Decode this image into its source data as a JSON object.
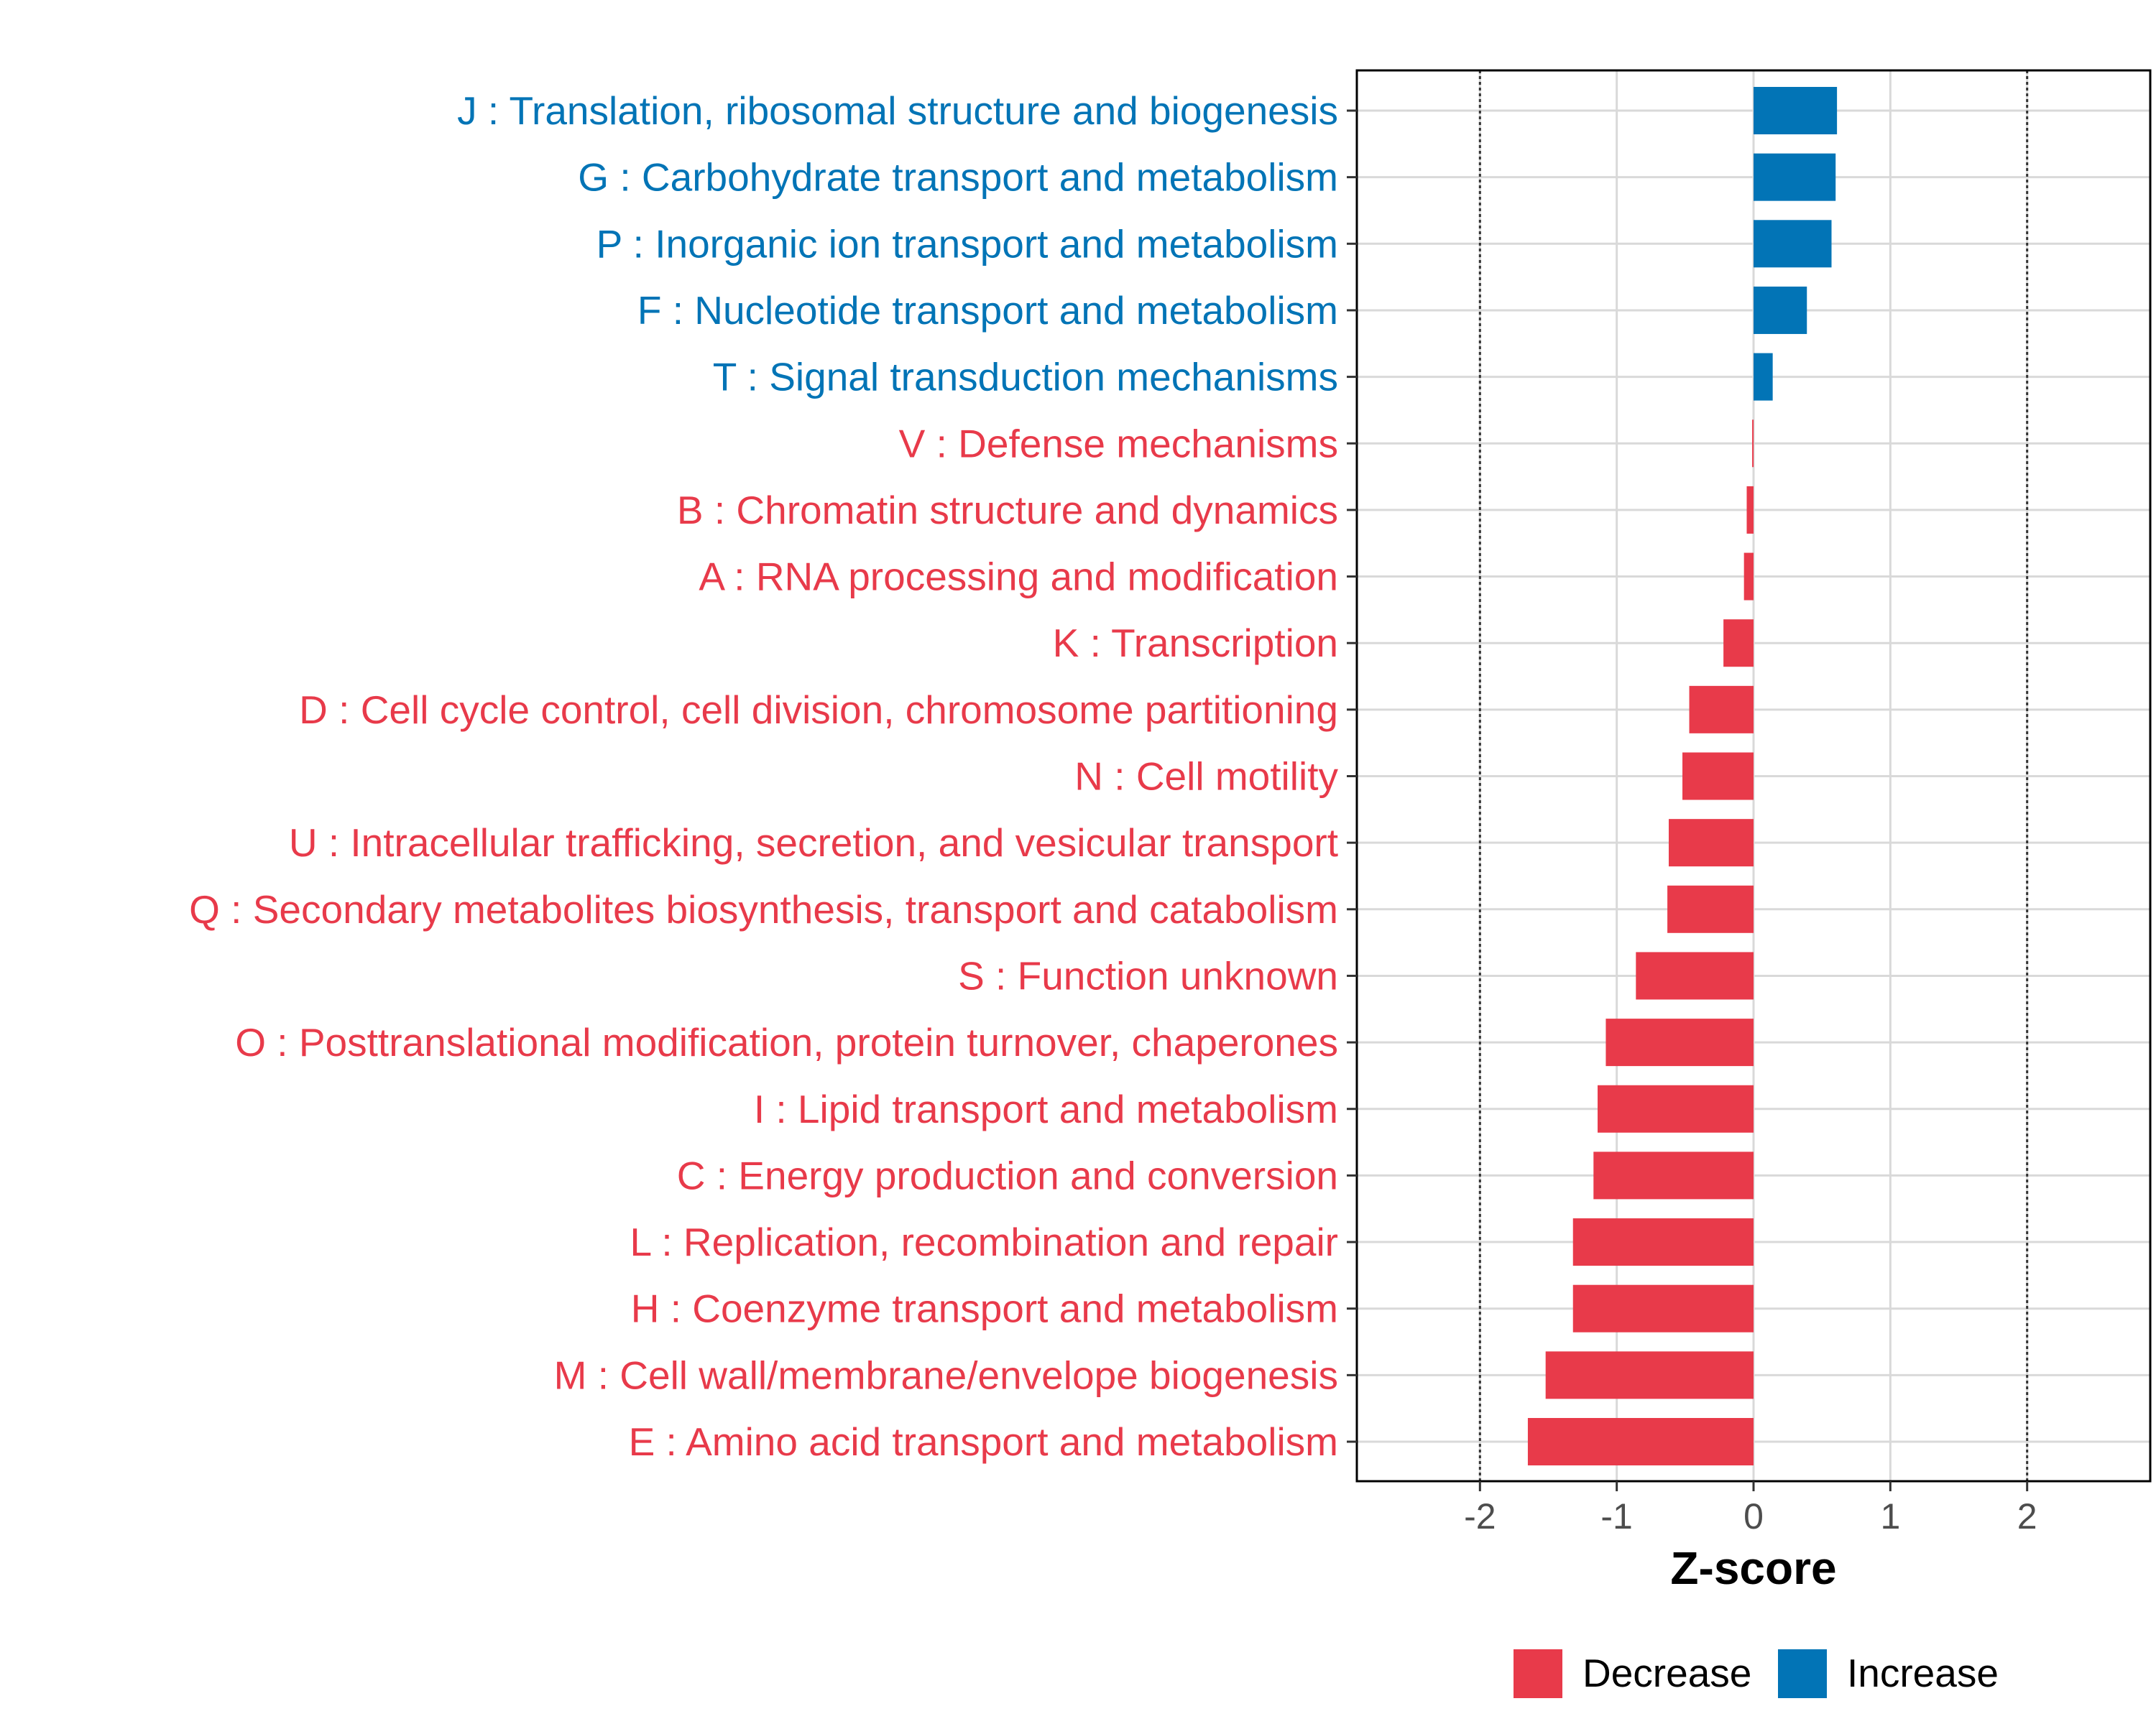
{
  "colors": {
    "increase": "#0274b6",
    "decrease": "#e83a4a",
    "grid": "#d9d9d9",
    "panel_border": "#000000",
    "ref_line": "#333333"
  },
  "chart_data": {
    "type": "bar",
    "orientation": "horizontal",
    "xlabel": "Z-score",
    "xlim": [
      -2.9,
      2.9
    ],
    "x_ticks": [
      -2,
      -1,
      0,
      1,
      2
    ],
    "x_tick_labels": [
      "-2",
      "-1",
      "0",
      "1",
      "2"
    ],
    "reference_lines": [
      -2,
      2
    ],
    "grid": true,
    "legend": {
      "position": "bottom",
      "entries": [
        {
          "label": "Decrease",
          "color_key": "decrease"
        },
        {
          "label": "Increase",
          "color_key": "increase"
        }
      ]
    },
    "categories": [
      "J : Translation, ribosomal structure and biogenesis",
      "G : Carbohydrate transport and metabolism",
      "P : Inorganic ion transport and metabolism",
      "F : Nucleotide transport and metabolism",
      "T : Signal transduction mechanisms",
      "V : Defense mechanisms",
      "B : Chromatin structure and dynamics",
      "A : RNA processing and modification",
      "K : Transcription",
      "D : Cell cycle control, cell division, chromosome partitioning",
      "N : Cell motility",
      "U : Intracellular trafficking, secretion, and vesicular transport",
      "Q : Secondary metabolites biosynthesis, transport and catabolism",
      "S : Function unknown",
      "O : Posttranslational modification, protein turnover, chaperones",
      "I : Lipid transport and metabolism",
      "C : Energy production and conversion",
      "L : Replication, recombination and repair",
      "H : Coenzyme transport and metabolism",
      "M : Cell wall/membrane/envelope biogenesis",
      "E : Amino acid transport and metabolism"
    ],
    "values": [
      0.61,
      0.6,
      0.57,
      0.39,
      0.14,
      -0.01,
      -0.05,
      -0.07,
      -0.22,
      -0.47,
      -0.52,
      -0.62,
      -0.63,
      -0.86,
      -1.08,
      -1.14,
      -1.17,
      -1.32,
      -1.32,
      -1.52,
      -1.65
    ],
    "direction": [
      "Increase",
      "Increase",
      "Increase",
      "Increase",
      "Increase",
      "Decrease",
      "Decrease",
      "Decrease",
      "Decrease",
      "Decrease",
      "Decrease",
      "Decrease",
      "Decrease",
      "Decrease",
      "Decrease",
      "Decrease",
      "Decrease",
      "Decrease",
      "Decrease",
      "Decrease",
      "Decrease"
    ]
  }
}
